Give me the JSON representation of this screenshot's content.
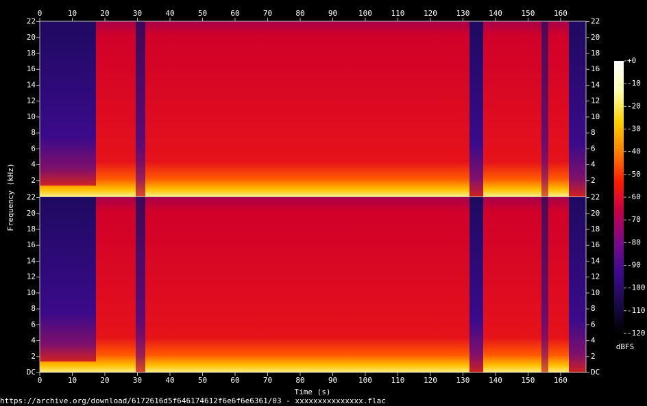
{
  "chart_data": {
    "type": "spectrogram",
    "xlabel": "Time (s)",
    "ylabel": "Frequency (kHz)",
    "xlim": [
      0,
      167.8
    ],
    "xticks": [
      0,
      10,
      20,
      30,
      40,
      50,
      60,
      70,
      80,
      90,
      100,
      110,
      120,
      130,
      140,
      150,
      160
    ],
    "channels": [
      {
        "ylim": [
          0,
          22.05
        ],
        "yticks": [
          2,
          4,
          6,
          8,
          10,
          12,
          14,
          16,
          18,
          20,
          22
        ]
      },
      {
        "ylim": [
          0,
          22.05
        ],
        "yticks": [
          {
            "value": 0,
            "label": "DC"
          },
          2,
          4,
          6,
          8,
          10,
          12,
          14,
          16,
          18,
          20,
          22
        ]
      }
    ],
    "colorbar": {
      "label": "dBFS",
      "lim": [
        -120,
        0
      ],
      "colors": [
        "#000000",
        "#1a0a4a",
        "#3c0a8c",
        "#7a0a8c",
        "#c0004a",
        "#ff1a00",
        "#ff8000",
        "#ffd000",
        "#ffffb0",
        "#ffffff"
      ],
      "ticks": [
        {
          "value": 0,
          "label": "+0"
        },
        -10,
        -20,
        -30,
        -40,
        -50,
        -60,
        -70,
        -80,
        -90,
        -100,
        -110,
        -120
      ]
    },
    "caption": "https://archive.org/download/6172616d5f646174612f6e6f6e6361/03 - xxxxxxxxxxxxxxx.flac"
  }
}
